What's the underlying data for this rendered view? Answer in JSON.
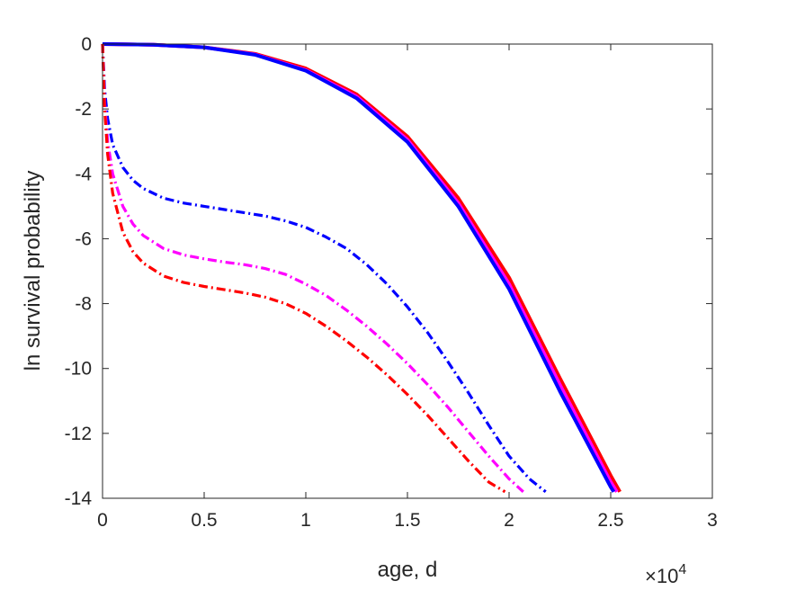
{
  "chart_data": {
    "type": "line",
    "title": "",
    "xlabel": "age, d",
    "ylabel": "ln survival probability",
    "x_exponent_prefix": "×10",
    "x_exponent_power": "4",
    "xlim": [
      0,
      30000
    ],
    "ylim": [
      -14,
      0
    ],
    "x_ticks": [
      0,
      5000,
      10000,
      15000,
      20000,
      25000,
      30000
    ],
    "x_tick_labels": [
      "0",
      "0.5",
      "1",
      "1.5",
      "2",
      "2.5",
      "3"
    ],
    "y_ticks": [
      -14,
      -12,
      -10,
      -8,
      -6,
      -4,
      -2,
      0
    ],
    "y_tick_labels": [
      "-14",
      "-12",
      "-10",
      "-8",
      "-6",
      "-4",
      "-2",
      "0"
    ],
    "grid": false,
    "series": [
      {
        "color": "#ff0000",
        "line_style": "solid",
        "x": [
          0,
          2500,
          5000,
          7500,
          10000,
          12500,
          15000,
          17500,
          20000,
          22500,
          25000,
          25450
        ],
        "y": [
          0,
          -0.02,
          -0.1,
          -0.3,
          -0.75,
          -1.55,
          -2.85,
          -4.75,
          -7.2,
          -10.3,
          -13.3,
          -13.8
        ]
      },
      {
        "color": "#ff00ff",
        "line_style": "solid",
        "x": [
          0,
          2500,
          5000,
          7500,
          10000,
          12500,
          15000,
          17500,
          20000,
          22500,
          25000,
          25300
        ],
        "y": [
          0,
          -0.02,
          -0.1,
          -0.32,
          -0.8,
          -1.62,
          -2.95,
          -4.9,
          -7.4,
          -10.5,
          -13.5,
          -13.8
        ]
      },
      {
        "color": "#0000ff",
        "line_style": "solid",
        "x": [
          0,
          2500,
          5000,
          7500,
          10000,
          12500,
          15000,
          17500,
          20000,
          22500,
          25000,
          25150
        ],
        "y": [
          0,
          -0.02,
          -0.1,
          -0.33,
          -0.82,
          -1.67,
          -3.02,
          -5.0,
          -7.55,
          -10.7,
          -13.65,
          -13.8
        ]
      },
      {
        "color": "#0000ff",
        "line_style": "dash-dot",
        "x": [
          0,
          100,
          250,
          500,
          1000,
          1500,
          2000,
          3000,
          4000,
          5000,
          6000,
          7000,
          8000,
          9000,
          10000,
          11000,
          12000,
          13000,
          14000,
          15000,
          16000,
          17000,
          18000,
          19000,
          20000,
          21000,
          21800
        ],
        "y": [
          0,
          -1.4,
          -2.3,
          -3.1,
          -3.8,
          -4.2,
          -4.45,
          -4.75,
          -4.9,
          -5.0,
          -5.1,
          -5.2,
          -5.3,
          -5.45,
          -5.65,
          -5.95,
          -6.3,
          -6.8,
          -7.4,
          -8.1,
          -8.9,
          -9.8,
          -10.75,
          -11.75,
          -12.7,
          -13.4,
          -13.8
        ]
      },
      {
        "color": "#ff00ff",
        "line_style": "dash-dot",
        "x": [
          0,
          100,
          250,
          500,
          1000,
          1500,
          2000,
          3000,
          4000,
          5000,
          6000,
          7000,
          8000,
          9000,
          10000,
          11000,
          12000,
          13000,
          14000,
          15000,
          16000,
          17000,
          18000,
          19000,
          20000,
          20700
        ],
        "y": [
          0,
          -1.8,
          -3.0,
          -4.0,
          -5.0,
          -5.55,
          -5.9,
          -6.3,
          -6.5,
          -6.62,
          -6.72,
          -6.8,
          -6.92,
          -7.1,
          -7.4,
          -7.75,
          -8.2,
          -8.7,
          -9.25,
          -9.85,
          -10.5,
          -11.2,
          -11.95,
          -12.7,
          -13.4,
          -13.8
        ]
      },
      {
        "color": "#ff0000",
        "line_style": "dash-dot",
        "x": [
          0,
          100,
          250,
          500,
          1000,
          1500,
          2000,
          3000,
          4000,
          5000,
          6000,
          7000,
          8000,
          9000,
          10000,
          11000,
          12000,
          13000,
          14000,
          15000,
          16000,
          17000,
          18000,
          19000,
          19800
        ],
        "y": [
          0,
          -2.0,
          -3.4,
          -4.6,
          -5.8,
          -6.4,
          -6.75,
          -7.15,
          -7.35,
          -7.47,
          -7.57,
          -7.67,
          -7.8,
          -8.0,
          -8.3,
          -8.7,
          -9.15,
          -9.65,
          -10.2,
          -10.8,
          -11.45,
          -12.15,
          -12.85,
          -13.5,
          -13.8
        ]
      }
    ]
  }
}
